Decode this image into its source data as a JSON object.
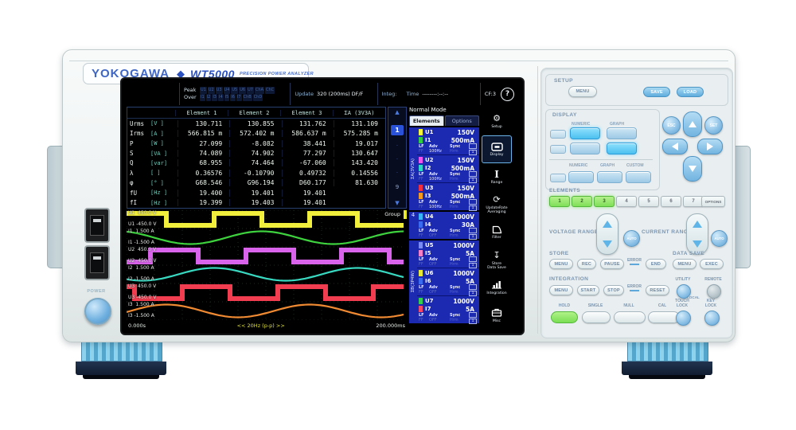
{
  "brand": {
    "logo": "YOKOGAWA",
    "diamond": "◆",
    "model": "WT5000",
    "tagline": "PRECISION POWER ANALYZER"
  },
  "left_panel": {
    "power_label": "POWER"
  },
  "screen": {
    "header": {
      "peak_label": "Peak",
      "peak_items": [
        "U1",
        "U2",
        "U3",
        "U4",
        "U5",
        "U6",
        "U7",
        "ChA",
        "ChC"
      ],
      "over_label": "Over",
      "over_items": [
        "I1",
        "I2",
        "I3",
        "I4",
        "I5",
        "I6",
        "I7",
        "ChB",
        "ChD"
      ],
      "update_label": "Update",
      "update_value": "320 (200ms)",
      "update_suffix": "DF/F",
      "integ_label": "Integ:",
      "time_label": "Time",
      "time_value": "--------:--:--",
      "cf_badge": "CF:3",
      "help": "?",
      "mode": "Normal Mode"
    },
    "table": {
      "columns": [
        "Element 1",
        "Element 2",
        "Element 3",
        "ΣA (3V3A)"
      ],
      "rows": [
        {
          "name": "Urms",
          "unit": "[V  ]",
          "values": [
            "130.711",
            "130.855",
            "131.762",
            "131.109"
          ]
        },
        {
          "name": "Irms",
          "unit": "[A  ]",
          "values": [
            "566.815 m",
            "572.402 m",
            "586.637 m",
            "575.285 m"
          ]
        },
        {
          "name": "P",
          "unit": "[W  ]",
          "values": [
            "27.099",
            "-8.082",
            "38.441",
            "19.017"
          ]
        },
        {
          "name": "S",
          "unit": "[VA ]",
          "values": [
            "74.089",
            "74.902",
            "77.297",
            "130.647"
          ]
        },
        {
          "name": "Q",
          "unit": "[var]",
          "values": [
            "68.955",
            "74.464",
            "-67.060",
            "143.420"
          ]
        },
        {
          "name": "λ",
          "unit": "[   ]",
          "values": [
            "0.36576",
            "-0.10790",
            "0.49732",
            "0.14556"
          ]
        },
        {
          "name": "φ",
          "unit": "[°  ]",
          "values": [
            "G68.546",
            "G96.194",
            "D60.177",
            "81.630"
          ]
        },
        {
          "name": "fU",
          "unit": "[Hz ]",
          "values": [
            "19.400",
            "19.401",
            "19.401",
            ""
          ]
        },
        {
          "name": "fI",
          "unit": "[Hz ]",
          "values": [
            "19.399",
            "19.403",
            "19.401",
            ""
          ]
        }
      ]
    },
    "pager": {
      "up": "▲",
      "current": "1",
      "dots": [
        "·",
        "·",
        "·"
      ],
      "last": "9",
      "down": "▼"
    },
    "scope": {
      "group_label": "Group",
      "t_start": "0.000s",
      "t_center": "<< 20Hz (p-p) >>",
      "t_end": "200.000ms",
      "traces": [
        {
          "ch": "U1",
          "max": "450.0 V",
          "min": "-450.0 V",
          "color": "#f2ee3c",
          "type": "square",
          "offset": -10
        },
        {
          "ch": "I1",
          "max": "1.500 A",
          "min": "-1.500 A",
          "color": "#3ed23e",
          "type": "sine",
          "offset": 125
        },
        {
          "ch": "U2",
          "max": "450.0 V",
          "min": "-450.0 V",
          "color": "#d963ea",
          "type": "square",
          "offset": 30
        },
        {
          "ch": "I2",
          "max": "1.500 A",
          "min": "-1.500 A",
          "color": "#38d8c0",
          "type": "sine",
          "offset": 65
        },
        {
          "ch": "U3",
          "max": "450.0 V",
          "min": "-450.0 V",
          "color": "#f23c50",
          "type": "square",
          "offset": 70
        },
        {
          "ch": "I3",
          "max": "1.500 A",
          "min": "-1.500 A",
          "color": "#f08a32",
          "type": "sine",
          "offset": 5
        }
      ]
    },
    "sidebar": {
      "tabs": [
        {
          "label": "Elements",
          "active": true
        },
        {
          "label": "Options",
          "active": false
        }
      ],
      "groups": [
        {
          "label": "ΣA(3V3A)",
          "elements": [
            {
              "u_ch": "U1",
              "u_range": "150V",
              "u_color": "#f5f53a",
              "i_ch": "I1",
              "i_range": "500mA",
              "i_color": "#30cc44",
              "lf": "LF",
              "ff": "FF",
              "adv": "Adv",
              "freq": "100Hz",
              "freq_on": true,
              "sync": "Sync",
              "hrm": "Hrm",
              "num": "1"
            },
            {
              "u_ch": "U2",
              "u_range": "150V",
              "u_color": "#ee55ee",
              "i_ch": "I2",
              "i_range": "500mA",
              "i_color": "#2ed8c8",
              "lf": "LF",
              "ff": "FF",
              "adv": "Adv",
              "freq": "100Hz",
              "freq_on": true,
              "sync": "Sync",
              "hrm": "Hrm",
              "num": "1"
            },
            {
              "u_ch": "U3",
              "u_range": "150V",
              "u_color": "#f03040",
              "i_ch": "I3",
              "i_range": "500mA",
              "i_color": "#f59a20",
              "lf": "LF",
              "ff": "FF",
              "adv": "Adv",
              "freq": "100Hz",
              "freq_on": true,
              "sync": "Sync",
              "hrm": "Hrm",
              "num": "1"
            }
          ]
        },
        {
          "label": "4",
          "elements": [
            {
              "u_ch": "U4",
              "u_range": "1000V",
              "u_color": "#38b4f5",
              "i_ch": "I4",
              "i_range": "30A",
              "i_color": "#3a6af0",
              "lf": "LF",
              "ff": "FF",
              "adv": "Adv",
              "freq": "OFF",
              "freq_on": false,
              "sync": "Sync",
              "hrm": "Hrm",
              "num": "1"
            }
          ]
        },
        {
          "label": "ΣB(3P4W)",
          "elements": [
            {
              "u_ch": "U5",
              "u_range": "1000V",
              "u_color": "#7a8af5",
              "i_ch": "I5",
              "i_range": "5A",
              "i_color": "#f580c8",
              "lf": "LF",
              "ff": "FF",
              "adv": "Adv",
              "freq": "OFF",
              "freq_on": false,
              "sync": "Sync",
              "hrm": "Hrm",
              "num": "1"
            },
            {
              "u_ch": "U6",
              "u_range": "1000V",
              "u_color": "#e8e838",
              "i_ch": "I6",
              "i_range": "5A",
              "i_color": "#3a6af0",
              "lf": "LF",
              "ff": "FF",
              "adv": "Adv",
              "freq": "OFF",
              "freq_on": false,
              "sync": "Sync",
              "hrm": "Hrm",
              "num": "1"
            },
            {
              "u_ch": "U7",
              "u_range": "1000V",
              "u_color": "#35cc50",
              "i_ch": "I7",
              "i_range": "5A",
              "i_color": "#f54868",
              "lf": "LF",
              "ff": "FF",
              "adv": "Adv",
              "freq": "OFF",
              "freq_on": false,
              "sync": "Sync",
              "hrm": "Hrm",
              "num": "1"
            }
          ]
        }
      ]
    },
    "iconbar": [
      {
        "name": "setup",
        "label": "Setup",
        "glyph": "gear",
        "active": false
      },
      {
        "name": "display",
        "label": "Display",
        "glyph": "display",
        "active": true
      },
      {
        "name": "range",
        "label": "Range",
        "glyph": "range",
        "active": false
      },
      {
        "name": "update-rate",
        "label": "UpdateRate\nAveraging",
        "glyph": "update",
        "active": false
      },
      {
        "name": "filter",
        "label": "Filter",
        "glyph": "filter",
        "active": false
      },
      {
        "name": "store",
        "label": "Store\nData Save",
        "glyph": "store",
        "active": false
      },
      {
        "name": "integration",
        "label": "Integration",
        "glyph": "integration",
        "active": false
      },
      {
        "name": "misc",
        "label": "Misc",
        "glyph": "misc",
        "active": false
      }
    ]
  },
  "panel": {
    "setup": {
      "title": "SETUP",
      "menu": "MENU",
      "save": "SAVE",
      "load": "LOAD"
    },
    "display": {
      "title": "DISPLAY",
      "row1": [
        "NUMERIC",
        "GRAPH"
      ],
      "row2": [
        "NUMERIC",
        "GRAPH",
        "CUSTOM"
      ]
    },
    "nav": {
      "esc": "ESC",
      "set": "SET"
    },
    "elements": {
      "title": "ELEMENTS",
      "keys": [
        {
          "label": "1",
          "lit": true
        },
        {
          "label": "2",
          "lit": true
        },
        {
          "label": "3",
          "lit": true
        },
        {
          "label": "4",
          "lit": false
        },
        {
          "label": "5",
          "lit": false
        },
        {
          "label": "6",
          "lit": false
        },
        {
          "label": "7",
          "lit": false
        }
      ],
      "options": "OPTIONS"
    },
    "ranges": {
      "voltage": "VOLTAGE RANGE",
      "current": "CURRENT RANGE",
      "auto": "AUTO"
    },
    "store": {
      "title": "STORE",
      "menu": "MENU",
      "rec": "REC",
      "pause": "PAUSE",
      "error": "ERROR",
      "end": "END"
    },
    "data_save": {
      "title": "DATA SAVE",
      "menu": "MENU",
      "exec": "EXEC"
    },
    "integration": {
      "title": "INTEGRATION",
      "menu": "MENU",
      "start": "START",
      "stop": "STOP",
      "error": "ERROR",
      "reset": "RESET"
    },
    "remote": {
      "utility": "UTILITY",
      "remote": "REMOTE",
      "local": "LOCAL"
    },
    "hold_row": {
      "hold": "HOLD",
      "single": "SINGLE",
      "null": "NULL",
      "cal": "CAL"
    },
    "locks": {
      "touch": [
        "TOUCH",
        "LOCK"
      ],
      "key": [
        "KEY",
        "LOCK"
      ]
    }
  }
}
